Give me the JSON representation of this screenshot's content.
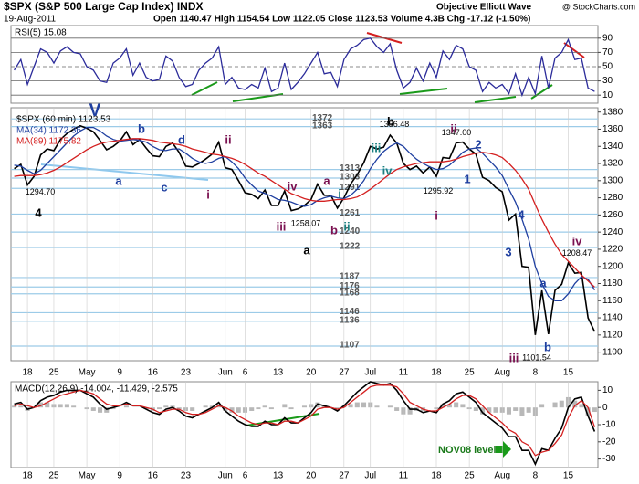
{
  "header": {
    "title": "$SPX (S&P 500 Large Cap Index) INDX",
    "date": "19-Aug-2011",
    "quote": "Open 1140.47 High 1154.54 Low 1122.05 Close 1123.53 Volume 4.3B Chg -17.12 (-1.50%)",
    "brand": "Objective Elliott Wave",
    "source": "@ StockCharts.com"
  },
  "chart_data": [
    {
      "type": "line",
      "title": "RSI(5) 15.08",
      "ylim": [
        0,
        100
      ],
      "yticks": [
        10,
        30,
        50,
        70,
        90
      ],
      "grid": true,
      "color": "#2b2b9a",
      "values": [
        45,
        60,
        25,
        50,
        75,
        70,
        55,
        72,
        78,
        70,
        68,
        50,
        45,
        30,
        28,
        55,
        62,
        75,
        38,
        55,
        35,
        30,
        32,
        65,
        58,
        35,
        22,
        25,
        45,
        55,
        62,
        78,
        25,
        35,
        20,
        18,
        25,
        20,
        48,
        15,
        20,
        55,
        18,
        28,
        40,
        55,
        70,
        40,
        42,
        22,
        60,
        75,
        80,
        88,
        90,
        78,
        70,
        82,
        45,
        20,
        28,
        48,
        30,
        55,
        35,
        72,
        60,
        80,
        75,
        50,
        45,
        15,
        28,
        20,
        25,
        12,
        40,
        10,
        35,
        12,
        65,
        20,
        62,
        70,
        88,
        60,
        62,
        20,
        15.08
      ]
    },
    {
      "type": "line",
      "ylim": [
        1090,
        1385
      ],
      "yticks": [
        1100,
        1120,
        1140,
        1160,
        1180,
        1200,
        1220,
        1240,
        1260,
        1280,
        1300,
        1320,
        1340,
        1360,
        1380
      ],
      "categories": [
        null,
        null,
        "18",
        null,
        null,
        null,
        "25",
        null,
        null,
        null,
        null,
        "May",
        null,
        null,
        null,
        null,
        "9",
        null,
        null,
        null,
        null,
        "16",
        null,
        null,
        null,
        null,
        "23",
        null,
        null,
        null,
        null,
        null,
        "Jun",
        null,
        null,
        "6",
        null,
        null,
        null,
        null,
        "13",
        null,
        null,
        null,
        null,
        "20",
        null,
        null,
        null,
        null,
        "27",
        null,
        null,
        null,
        "Jul",
        null,
        null,
        null,
        null,
        "11",
        null,
        null,
        null,
        null,
        "18",
        null,
        null,
        null,
        null,
        "25",
        null,
        null,
        null,
        null,
        "Aug",
        null,
        null,
        null,
        null,
        "8",
        null,
        null,
        null,
        null,
        "15",
        null,
        null,
        null,
        null
      ],
      "series": [
        {
          "name": "$SPX (60 min) 1123.53",
          "color": "#000000",
          "values": [
            1314,
            1319,
            1295,
            1305,
            1330,
            1337,
            1335,
            1348,
            1355,
            1360,
            1364,
            1361,
            1357,
            1347,
            1336,
            1340,
            1346,
            1357,
            1342,
            1348,
            1338,
            1329,
            1328,
            1340,
            1344,
            1333,
            1317,
            1316,
            1320,
            1325,
            1331,
            1345,
            1315,
            1313,
            1300,
            1286,
            1284,
            1279,
            1289,
            1271,
            1271,
            1288,
            1265,
            1267,
            1271,
            1278,
            1296,
            1283,
            1283,
            1268,
            1280,
            1296,
            1307,
            1321,
            1340,
            1337,
            1339,
            1353,
            1344,
            1320,
            1313,
            1317,
            1309,
            1316,
            1305,
            1327,
            1326,
            1344,
            1345,
            1337,
            1331,
            1304,
            1300,
            1292,
            1287,
            1254,
            1261,
            1200,
            1199,
            1120,
            1172,
            1121,
            1172,
            1179,
            1204,
            1192,
            1193,
            1140,
            1124
          ]
        },
        {
          "name": "MA(34) 1172.36",
          "color": "#1f3fa0",
          "values": [
            1318,
            1317,
            1312,
            1308,
            1312,
            1320,
            1328,
            1336,
            1344,
            1352,
            1358,
            1362,
            1362,
            1358,
            1352,
            1348,
            1346,
            1347,
            1348,
            1347,
            1345,
            1340,
            1336,
            1335,
            1337,
            1337,
            1332,
            1326,
            1322,
            1320,
            1322,
            1326,
            1328,
            1322,
            1314,
            1303,
            1295,
            1288,
            1285,
            1282,
            1278,
            1277,
            1275,
            1272,
            1270,
            1272,
            1277,
            1280,
            1282,
            1280,
            1279,
            1283,
            1290,
            1300,
            1314,
            1325,
            1334,
            1340,
            1344,
            1340,
            1332,
            1325,
            1320,
            1316,
            1313,
            1314,
            1318,
            1325,
            1333,
            1337,
            1338,
            1332,
            1324,
            1316,
            1306,
            1290,
            1275,
            1255,
            1232,
            1200,
            1180,
            1165,
            1160,
            1160,
            1168,
            1180,
            1188,
            1185,
            1172.36
          ]
        },
        {
          "name": "MA(89) 1175.82",
          "color": "#d42020",
          "values": [
            1305,
            1306,
            1306,
            1306,
            1307,
            1309,
            1312,
            1316,
            1321,
            1326,
            1331,
            1336,
            1340,
            1343,
            1345,
            1346,
            1347,
            1348,
            1349,
            1349,
            1348,
            1347,
            1345,
            1344,
            1343,
            1342,
            1340,
            1337,
            1335,
            1333,
            1331,
            1330,
            1328,
            1326,
            1323,
            1319,
            1314,
            1309,
            1305,
            1300,
            1295,
            1290,
            1285,
            1282,
            1279,
            1277,
            1276,
            1276,
            1277,
            1278,
            1278,
            1279,
            1281,
            1285,
            1290,
            1296,
            1302,
            1308,
            1313,
            1316,
            1318,
            1320,
            1321,
            1322,
            1322,
            1322,
            1323,
            1325,
            1328,
            1330,
            1332,
            1333,
            1332,
            1330,
            1327,
            1320,
            1312,
            1302,
            1290,
            1272,
            1255,
            1240,
            1226,
            1214,
            1206,
            1198,
            1190,
            1183,
            1175.82
          ]
        }
      ],
      "levels": [
        1372,
        1363,
        1313,
        1303,
        1291,
        1261,
        1240,
        1222,
        1187,
        1176,
        1168,
        1146,
        1136,
        1107
      ],
      "price_labels": [
        {
          "value": 1294.7,
          "label": "1294.70"
        },
        {
          "value": 1258.07,
          "label": "1258.07"
        },
        {
          "value": 1356.48,
          "label": "1356.48"
        },
        {
          "value": 1295.92,
          "label": "1295.92"
        },
        {
          "value": 1347,
          "label": "1347.00"
        },
        {
          "value": 1208.47,
          "label": "1208.47"
        },
        {
          "value": 1101.54,
          "label": "1101.54"
        }
      ],
      "annotations": [
        {
          "text": "V",
          "color": "#1f3fa0"
        },
        {
          "text": "4",
          "color": "#000000"
        },
        {
          "text": "a",
          "color": "#1f3fa0"
        },
        {
          "text": "b",
          "color": "#1f3fa0"
        },
        {
          "text": "c",
          "color": "#1f3fa0"
        },
        {
          "text": "d",
          "color": "#1f3fa0"
        },
        {
          "text": "i",
          "color": "#7a1050"
        },
        {
          "text": "ii",
          "color": "#7a1050"
        },
        {
          "text": "iii",
          "color": "#7a1050"
        },
        {
          "text": "iv",
          "color": "#7a1050"
        },
        {
          "text": "a",
          "color": "#7a1050"
        },
        {
          "text": "b",
          "color": "#7a1050"
        },
        {
          "text": "i",
          "color": "#1a8080"
        },
        {
          "text": "ii",
          "color": "#1a8080"
        },
        {
          "text": "a",
          "color": "#000000"
        },
        {
          "text": "b",
          "color": "#000000"
        },
        {
          "text": "iii",
          "color": "#1a8080"
        },
        {
          "text": "iv",
          "color": "#1a8080"
        },
        {
          "text": "ii",
          "color": "#7a1050"
        },
        {
          "text": "2",
          "color": "#1f3fa0"
        },
        {
          "text": "1",
          "color": "#1f3fa0"
        },
        {
          "text": "i",
          "color": "#7a1050"
        },
        {
          "text": "3",
          "color": "#1f3fa0"
        },
        {
          "text": "4",
          "color": "#1f3fa0"
        },
        {
          "text": "iii",
          "color": "#7a1050"
        },
        {
          "text": "a",
          "color": "#1f3fa0"
        },
        {
          "text": "b",
          "color": "#1f3fa0"
        },
        {
          "text": "iv",
          "color": "#7a1050"
        }
      ]
    },
    {
      "type": "line",
      "title": "MACD(12,26,9) -14.004, -11.429, -2.575",
      "ylim": [
        -35,
        15
      ],
      "yticks": [
        -30,
        -20,
        -10,
        0,
        10
      ],
      "categories": [
        null,
        null,
        "18",
        null,
        null,
        null,
        "25",
        null,
        null,
        null,
        null,
        "May",
        null,
        null,
        null,
        null,
        "9",
        null,
        null,
        null,
        null,
        "16",
        null,
        null,
        null,
        null,
        "23",
        null,
        null,
        null,
        null,
        null,
        "Jun",
        null,
        null,
        "6",
        null,
        null,
        null,
        null,
        "13",
        null,
        null,
        null,
        null,
        "20",
        null,
        null,
        null,
        null,
        "27",
        null,
        null,
        null,
        "Jul",
        null,
        null,
        null,
        null,
        "11",
        null,
        null,
        null,
        null,
        "18",
        null,
        null,
        null,
        null,
        "25",
        null,
        null,
        null,
        null,
        "Aug",
        null,
        null,
        null,
        null,
        "8",
        null,
        null,
        null,
        null,
        "15",
        null,
        null,
        null,
        null
      ],
      "series": [
        {
          "color": "#000000",
          "values": [
            2,
            3,
            -1,
            0,
            4,
            6,
            7,
            9,
            10,
            10,
            10,
            8,
            6,
            2,
            -1,
            0,
            1,
            3,
            1,
            1,
            -1,
            -3,
            -4,
            -1,
            0,
            -2,
            -5,
            -6,
            -4,
            -2,
            0,
            3,
            -2,
            -5,
            -8,
            -10,
            -11,
            -11,
            -8,
            -10,
            -10,
            -6,
            -9,
            -9,
            -6,
            -3,
            2,
            1,
            0,
            -2,
            1,
            5,
            9,
            12,
            15,
            14,
            13,
            14,
            10,
            4,
            -1,
            -1,
            -3,
            -2,
            -3,
            2,
            4,
            8,
            9,
            6,
            3,
            -3,
            -6,
            -9,
            -12,
            -17,
            -17,
            -25,
            -25,
            -33,
            -24,
            -25,
            -18,
            -12,
            0,
            5,
            6,
            -5,
            -14.004
          ]
        },
        {
          "color": "#d42020",
          "values": [
            1,
            2,
            1,
            0,
            1,
            3,
            5,
            7,
            8,
            9,
            10,
            9,
            8,
            5,
            2,
            1,
            1,
            2,
            1,
            1,
            0,
            -1,
            -3,
            -2,
            -1,
            -1,
            -3,
            -4,
            -4,
            -3,
            -1,
            1,
            0,
            -2,
            -5,
            -7,
            -9,
            -10,
            -9,
            -9,
            -10,
            -8,
            -8,
            -9,
            -7,
            -5,
            -1,
            0,
            0,
            -1,
            0,
            3,
            6,
            9,
            12,
            13,
            13,
            13,
            12,
            8,
            3,
            1,
            -1,
            -2,
            -2,
            0,
            2,
            5,
            7,
            7,
            5,
            1,
            -3,
            -6,
            -9,
            -13,
            -15,
            -20,
            -22,
            -28,
            -26,
            -25,
            -21,
            -16,
            -6,
            1,
            4,
            0,
            -11.429
          ]
        }
      ],
      "histogram": {
        "color": "#b8b8b8",
        "values": [
          1,
          1,
          -2,
          0,
          3,
          3,
          2,
          2,
          2,
          1,
          0,
          -1,
          -2,
          -3,
          -3,
          -1,
          0,
          1,
          0,
          0,
          -1,
          -2,
          -1,
          1,
          1,
          -1,
          -2,
          -2,
          0,
          1,
          1,
          2,
          -2,
          -3,
          -3,
          -3,
          -2,
          -1,
          1,
          -1,
          0,
          2,
          -1,
          0,
          1,
          2,
          3,
          1,
          0,
          -1,
          1,
          2,
          3,
          3,
          3,
          1,
          0,
          1,
          -2,
          -4,
          -4,
          -2,
          -2,
          0,
          -1,
          2,
          2,
          3,
          2,
          -1,
          -2,
          -4,
          -3,
          -3,
          -3,
          -4,
          -2,
          -5,
          -3,
          -5,
          2,
          0,
          3,
          4,
          6,
          4,
          2,
          -5,
          -2.575
        ]
      },
      "annotation": {
        "text": "NOV08 level",
        "color": "#1a7a1a"
      }
    }
  ]
}
